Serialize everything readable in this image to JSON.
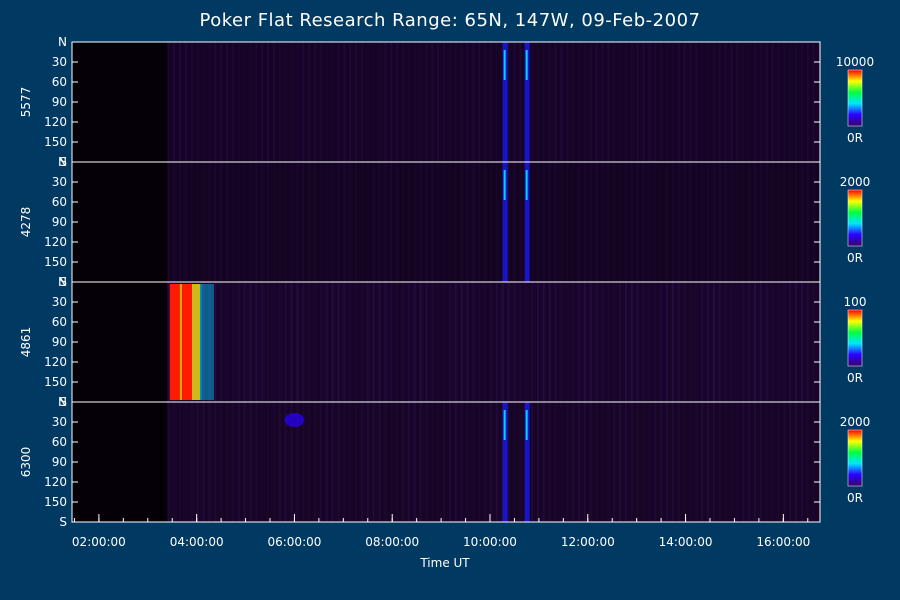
{
  "title": "Poker Flat Research Range: 65N, 147W, 09-Feb-2007",
  "xlabel": "Time UT",
  "colors": {
    "background": "#003a63",
    "panel": "#050008",
    "axis": "#ffffff",
    "colormap": [
      "#3a0066",
      "#2a00ff",
      "#00e5ff",
      "#00ff40",
      "#ffff00",
      "#ff0000"
    ]
  },
  "chart_data": {
    "type": "heatmap",
    "title": "Poker Flat Research Range: 65N, 147W, 09-Feb-2007",
    "xlabel": "Time UT",
    "x_range_hours": [
      1.45,
      16.75
    ],
    "x_ticks": [
      {
        "hour": 2,
        "label": "02:00:00"
      },
      {
        "hour": 4,
        "label": "04:00:00"
      },
      {
        "hour": 6,
        "label": "06:00:00"
      },
      {
        "hour": 8,
        "label": "08:00:00"
      },
      {
        "hour": 10,
        "label": "10:00:00"
      },
      {
        "hour": 12,
        "label": "12:00:00"
      },
      {
        "hour": 14,
        "label": "14:00:00"
      },
      {
        "hour": 16,
        "label": "16:00:00"
      }
    ],
    "y_ticks": [
      "N",
      "30",
      "60",
      "90",
      "120",
      "150",
      "S"
    ],
    "y_tick_values": [
      0,
      30,
      60,
      90,
      120,
      150,
      180
    ],
    "data_start_hour": 3.4,
    "panels": [
      {
        "label": "5577",
        "cbar_max": "10000",
        "cbar_min": "0R",
        "level": 0.18,
        "bright_hours": [
          10.3,
          10.75
        ]
      },
      {
        "label": "4278",
        "cbar_max": "2000",
        "cbar_min": "0R",
        "level": 0.1,
        "bright_hours": [
          10.3,
          10.75
        ]
      },
      {
        "label": "4861",
        "cbar_max": "100",
        "cbar_min": "0R",
        "level": 0.3,
        "bright_hours": [
          3.45,
          3.7
        ]
      },
      {
        "label": "6300",
        "cbar_max": "2000",
        "cbar_min": "0R",
        "level": 0.22,
        "bright_hours": [
          6.0,
          10.3,
          10.75
        ]
      }
    ]
  }
}
